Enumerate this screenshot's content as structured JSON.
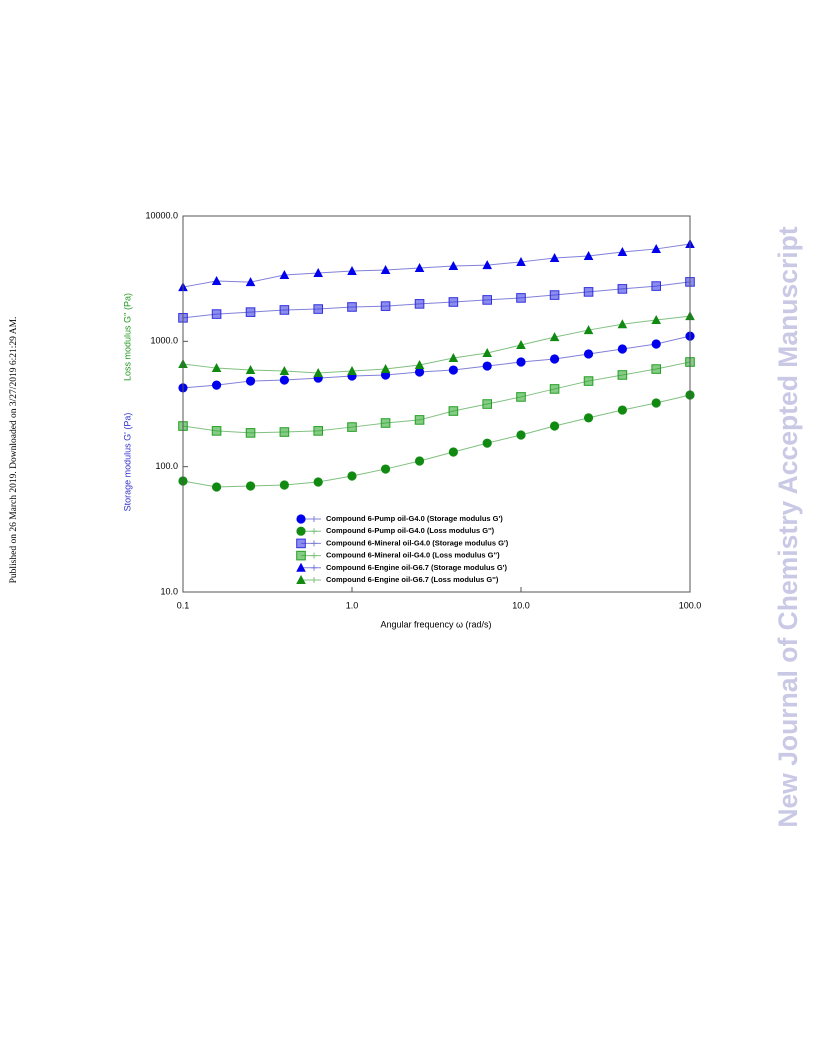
{
  "side_note": "Published on 26 March 2019. Downloaded on 3/27/2019 6:21:29 AM.",
  "watermark": "New Journal of Chemistry Accepted Manuscript",
  "chart_data": {
    "type": "line",
    "x_label": "Angular frequency  ω  (rad/s)",
    "y_label": "Storage modulus  G'  (Pa)",
    "y_label_secondary": "Loss modulus  G''  (Pa)",
    "log_x": true,
    "log_y": true,
    "xlim": [
      0.1,
      100
    ],
    "ylim": [
      10,
      10000
    ],
    "xticks": [
      0.1,
      {
        "value": 1,
        "label": "1.0"
      },
      {
        "value": 10,
        "label": "10.0"
      },
      {
        "value": 100,
        "label": "100.0"
      }
    ],
    "yticks": [
      {
        "value": 10,
        "label": "10.0"
      },
      {
        "value": 100,
        "label": "100.0"
      },
      {
        "value": 1000,
        "label": "1000.0"
      },
      {
        "value": 10000,
        "label": "10000.0"
      }
    ],
    "x": [
      0.1,
      0.158,
      0.251,
      0.398,
      0.631,
      1,
      1.58,
      2.51,
      3.98,
      6.31,
      10,
      15.8,
      25.1,
      39.8,
      63.1,
      100
    ],
    "series": [
      {
        "name": "Compound 6-Pump oil-G4.0 (Storage modulus G')",
        "color": "#0000ee",
        "line_color": "#8080d8",
        "marker": "circle",
        "values": [
          425,
          447,
          482,
          491,
          509,
          529,
          539,
          569,
          590,
          635,
          684,
          723,
          793,
          869,
          952,
          1100
        ]
      },
      {
        "name": "Compound 6-Pump oil-G4.0 (Loss modulus G'')",
        "color": "#108a10",
        "line_color": "#80c080",
        "marker": "circle",
        "values": [
          76.9,
          68.8,
          70.1,
          71.4,
          75.5,
          84.2,
          95.7,
          111,
          131,
          154,
          179,
          211,
          245,
          283,
          322,
          373
        ]
      },
      {
        "name": "Compound 6-Mineral oil-G4.0 (Storage modulus G')",
        "color": "#3030e0",
        "line_color": "#8080d8",
        "marker": "square",
        "values": [
          1540,
          1650,
          1710,
          1780,
          1810,
          1880,
          1910,
          1990,
          2060,
          2140,
          2220,
          2340,
          2480,
          2620,
          2760,
          2980
        ]
      },
      {
        "name": "Compound 6-Mineral oil-G4.0 (Loss modulus G'')",
        "color": "#22a022",
        "line_color": "#80c080",
        "marker": "square",
        "values": [
          211,
          193,
          186,
          189,
          193,
          207,
          223,
          236,
          278,
          316,
          360,
          417,
          482,
          539,
          601,
          684
        ]
      },
      {
        "name": "Compound 6-Engine oil-G6.7 (Storage modulus G')",
        "color": "#0000ee",
        "line_color": "#8080d8",
        "marker": "triangle",
        "values": [
          2710,
          3030,
          2970,
          3380,
          3510,
          3640,
          3710,
          3850,
          3990,
          4060,
          4300,
          4620,
          4800,
          5160,
          5460,
          5980
        ]
      },
      {
        "name": "Compound 6-Engine oil-G6.7 (Loss modulus G'')",
        "color": "#108a10",
        "line_color": "#80c080",
        "marker": "triangle",
        "values": [
          659,
          612,
          590,
          580,
          559,
          580,
          601,
          647,
          736,
          807,
          935,
          1080,
          1230,
          1370,
          1480,
          1590
        ]
      }
    ]
  }
}
